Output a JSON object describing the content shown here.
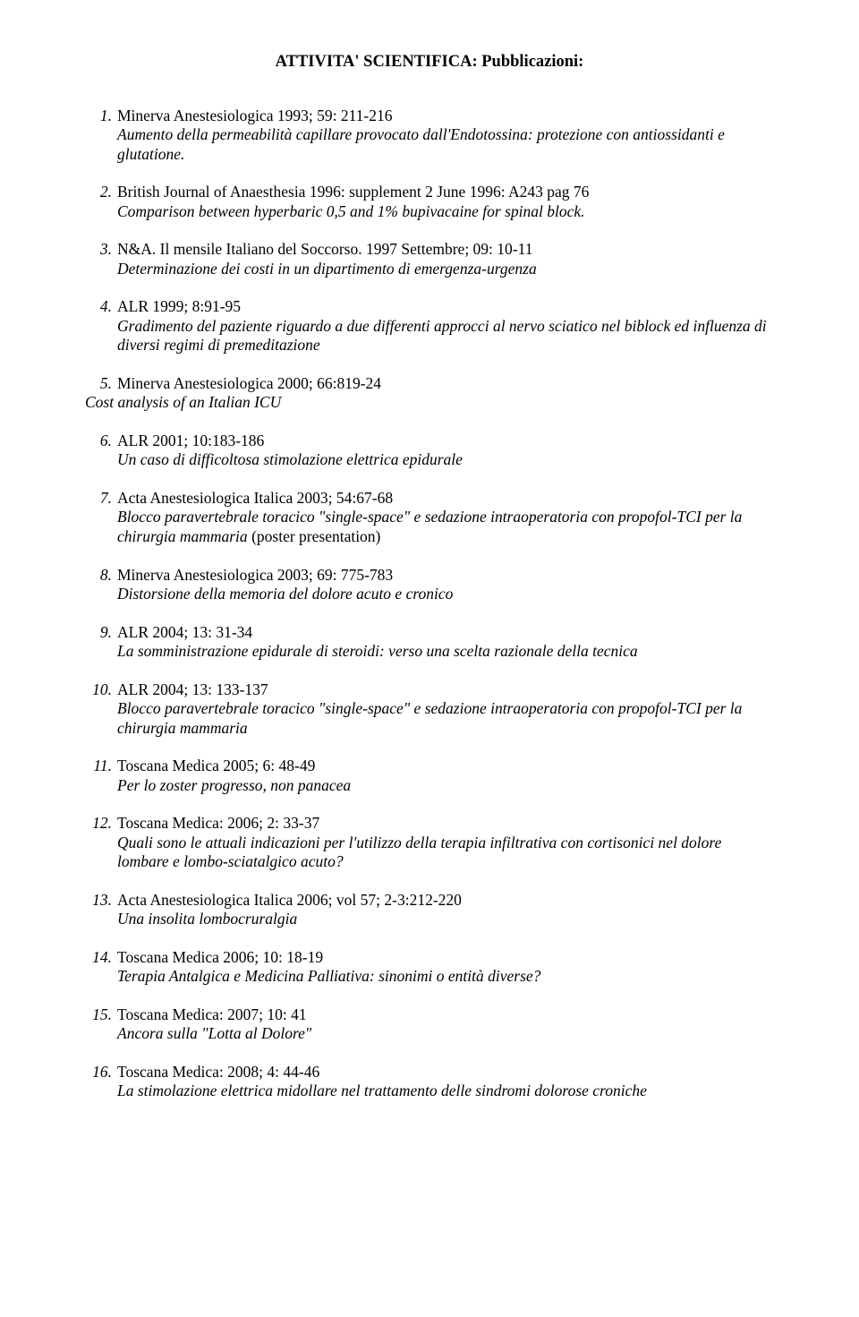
{
  "title": "ATTIVITA' SCIENTIFICA: Pubblicazioni:",
  "pubs": [
    {
      "ref": "Minerva Anestesiologica 1993; 59: 211-216",
      "desc": "Aumento della permeabilità capillare provocato dall'Endotossina: protezione con antiossidanti e glutatione."
    },
    {
      "ref": "British Journal of Anaesthesia 1996: supplement 2 June 1996: A243 pag 76",
      "desc": "Comparison between hyperbaric 0,5 and 1% bupivacaine for spinal block."
    },
    {
      "ref": "N&A. Il mensile Italiano del Soccorso. 1997 Settembre; 09: 10-11",
      "desc": "Determinazione dei costi in un dipartimento di emergenza-urgenza"
    },
    {
      "ref": "ALR 1999; 8:91-95",
      "desc": "Gradimento del paziente riguardo a due differenti approcci al nervo sciatico nel biblock ed influenza di diversi regimi di premeditazione"
    },
    {
      "ref": "Minerva Anestesiologica 2000; 66:819-24",
      "desc_outdent": "Cost analysis of an Italian ICU"
    },
    {
      "ref": "ALR 2001; 10:183-186",
      "desc": "Un caso di difficoltosa stimolazione elettrica epidurale"
    },
    {
      "ref": "Acta Anestesiologica Italica 2003; 54:67-68",
      "desc": "Blocco paravertebrale toracico \"single-space\" e  sedazione  intraoperatoria con propofol-TCI per la chirurgia mammaria",
      "paren": "  (poster presentation)"
    },
    {
      "ref": "Minerva Anestesiologica 2003; 69: 775-783",
      "desc": "Distorsione della memoria del dolore acuto e cronico"
    },
    {
      "ref": "ALR 2004; 13: 31-34",
      "desc": "La  somministrazione epidurale di steroidi: verso una scelta razionale della tecnica"
    },
    {
      "ref": "ALR 2004; 13: 133-137",
      "desc": "Blocco paravertebrale toracico \"single-space\" e  sedazione  intraoperatoria con propofol-TCI per la chirurgia mammaria"
    },
    {
      "ref": "Toscana Medica 2005; 6: 48-49",
      "desc": "Per lo zoster progresso, non panacea"
    },
    {
      "ref": "Toscana Medica: 2006; 2:  33-37",
      "desc": "Quali sono le attuali indicazioni per l'utilizzo della terapia infiltrativa con cortisonici nel dolore lombare e lombo-sciatalgico acuto?"
    },
    {
      "ref": "Acta Anestesiologica Italica 2006; vol 57; 2-3:212-220",
      "desc": "Una insolita lombocruralgia"
    },
    {
      "ref": "Toscana Medica 2006; 10: 18-19",
      "desc": "Terapia Antalgica e Medicina Palliativa: sinonimi o entità diverse?"
    },
    {
      "ref": "Toscana Medica: 2007; 10: 41",
      "desc": "Ancora sulla \"Lotta al Dolore\""
    },
    {
      "ref": "Toscana Medica: 2008; 4: 44-46",
      "desc": "La stimolazione elettrica midollare nel trattamento delle sindromi dolorose croniche"
    }
  ]
}
